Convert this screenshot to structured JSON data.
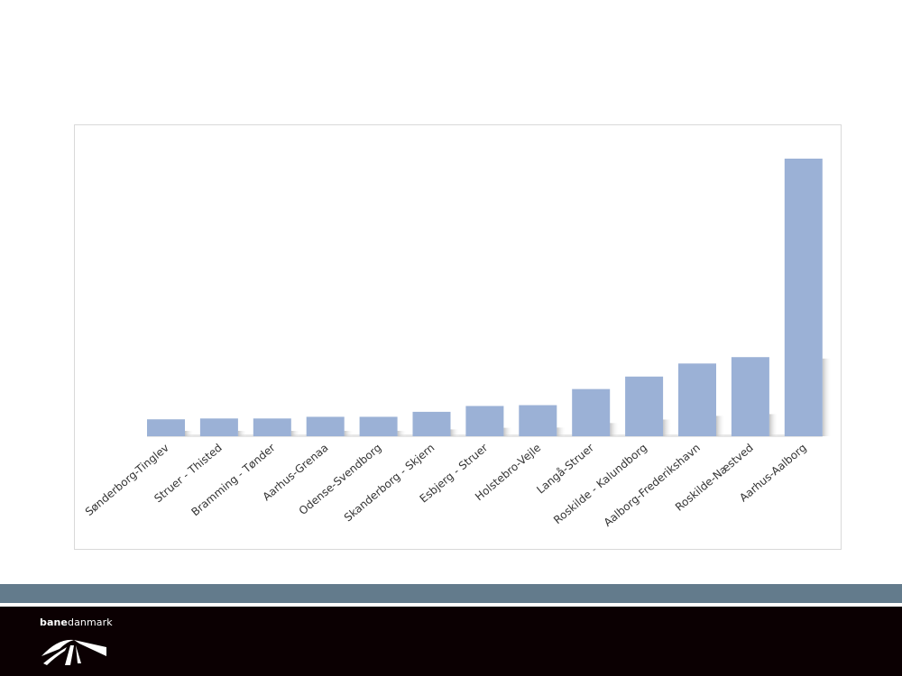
{
  "chart_data": {
    "type": "bar",
    "categories": [
      "Sønderborg-Tinglev",
      "Struer - Thisted",
      "Bramming - Tønder",
      "Aarhus-Grenaa",
      "Odense-Svendborg",
      "Skanderborg - Skjern",
      "Esbjerg - Struer",
      "Holstebro-Vejle",
      "Langå-Struer",
      "Roskilde - Kalundborg",
      "Aalborg-Frederikshavn",
      "Roskilde-Næstved",
      "Aarhus-Aalborg"
    ],
    "values": [
      6.1,
      6.4,
      6.4,
      7.0,
      7.0,
      8.8,
      10.9,
      11.2,
      17.0,
      21.5,
      26.2,
      28.5,
      100
    ],
    "ylim": [
      0,
      100
    ],
    "title": "",
    "xlabel": "",
    "ylabel": "",
    "grid": false,
    "bar_color": "#9bb1d6"
  },
  "footer": {
    "logo_text_bold": "bane",
    "logo_text_regular": "danmark",
    "stripe_color": "#637b8c",
    "band_color": "#0b0002"
  }
}
